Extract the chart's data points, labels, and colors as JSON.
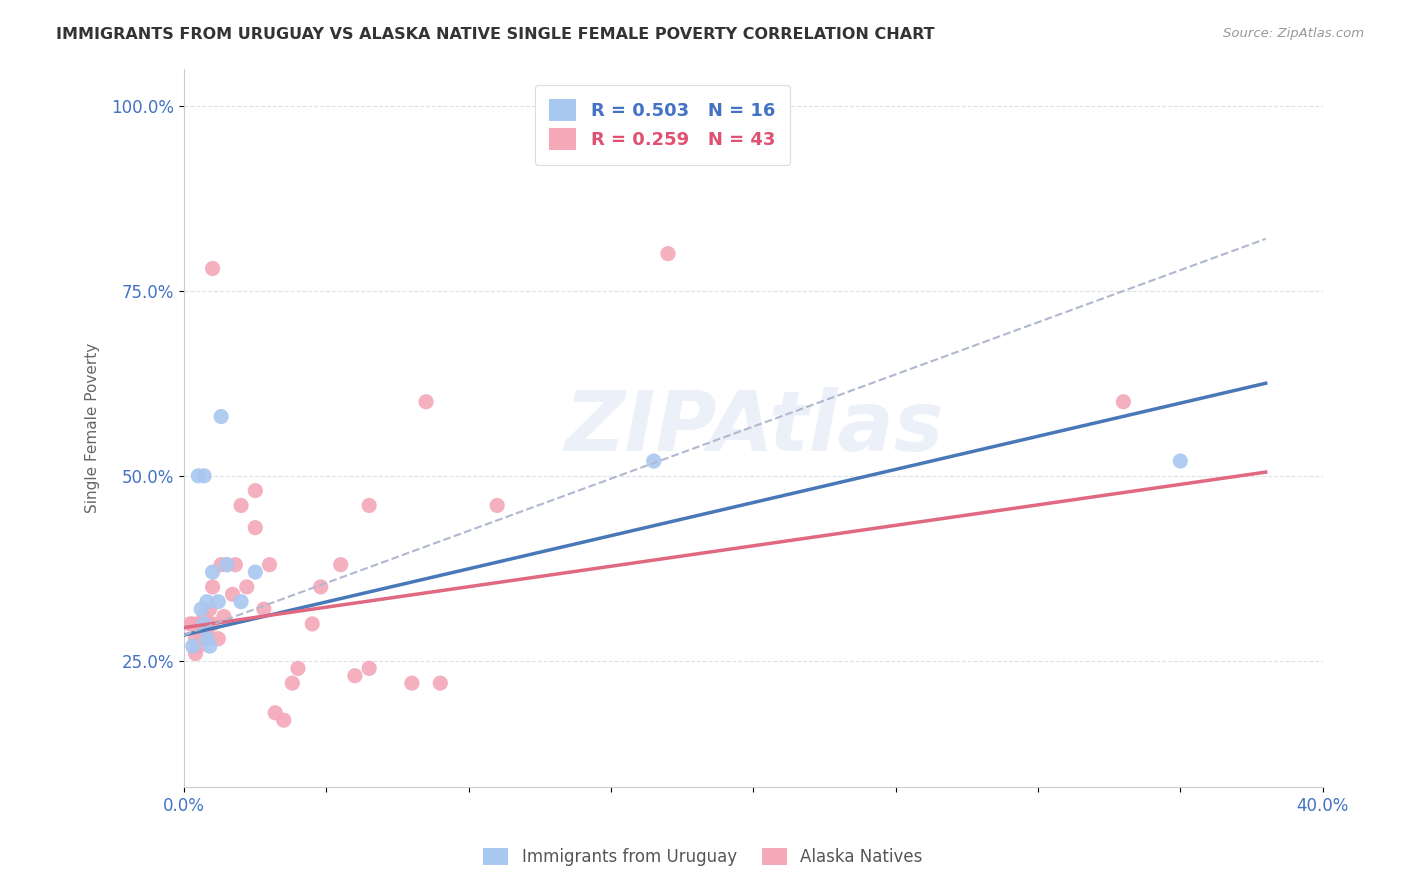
{
  "title": "IMMIGRANTS FROM URUGUAY VS ALASKA NATIVE SINGLE FEMALE POVERTY CORRELATION CHART",
  "source": "Source: ZipAtlas.com",
  "xlabel_label": "Immigrants from Uruguay",
  "ylabel_label": "Single Female Poverty",
  "xlim": [
    0.0,
    0.4
  ],
  "ylim": [
    0.08,
    1.05
  ],
  "xticks": [
    0.0,
    0.05,
    0.1,
    0.15,
    0.2,
    0.25,
    0.3,
    0.35,
    0.4
  ],
  "xtick_labels": [
    "0.0%",
    "",
    "",
    "",
    "",
    "",
    "",
    "",
    "40.0%"
  ],
  "ytick_positions": [
    0.25,
    0.5,
    0.75,
    1.0
  ],
  "ytick_labels": [
    "25.0%",
    "50.0%",
    "75.0%",
    "100.0%"
  ],
  "blue_R": "0.503",
  "blue_N": "16",
  "pink_R": "0.259",
  "pink_N": "43",
  "blue_color": "#a8c8f0",
  "pink_color": "#f4a8b8",
  "blue_line_color": "#4878b8",
  "pink_line_color": "#e06880",
  "dashed_line_color": "#b0b8d0",
  "watermark_text": "ZIPAtlas",
  "blue_scatter_x": [
    0.003,
    0.005,
    0.006,
    0.007,
    0.007,
    0.008,
    0.008,
    0.009,
    0.01,
    0.012,
    0.013,
    0.015,
    0.02,
    0.025,
    0.165,
    0.35
  ],
  "blue_scatter_y": [
    0.27,
    0.5,
    0.32,
    0.3,
    0.5,
    0.33,
    0.28,
    0.27,
    0.37,
    0.33,
    0.58,
    0.38,
    0.33,
    0.37,
    0.52,
    0.52
  ],
  "pink_scatter_x": [
    0.002,
    0.003,
    0.004,
    0.004,
    0.005,
    0.005,
    0.006,
    0.007,
    0.007,
    0.008,
    0.008,
    0.009,
    0.01,
    0.01,
    0.01,
    0.012,
    0.013,
    0.014,
    0.015,
    0.017,
    0.018,
    0.02,
    0.022,
    0.025,
    0.025,
    0.028,
    0.03,
    0.032,
    0.035,
    0.038,
    0.04,
    0.045,
    0.048,
    0.055,
    0.06,
    0.065,
    0.065,
    0.08,
    0.085,
    0.09,
    0.11,
    0.17,
    0.33
  ],
  "pink_scatter_y": [
    0.3,
    0.3,
    0.28,
    0.26,
    0.27,
    0.3,
    0.28,
    0.31,
    0.28,
    0.3,
    0.29,
    0.32,
    0.3,
    0.35,
    0.78,
    0.28,
    0.38,
    0.31,
    0.38,
    0.34,
    0.38,
    0.46,
    0.35,
    0.43,
    0.48,
    0.32,
    0.38,
    0.18,
    0.17,
    0.22,
    0.24,
    0.3,
    0.35,
    0.38,
    0.23,
    0.46,
    0.24,
    0.22,
    0.6,
    0.22,
    0.46,
    0.8,
    0.6
  ],
  "blue_trend_x": [
    0.0,
    0.38
  ],
  "blue_trend_y": [
    0.285,
    0.625
  ],
  "pink_trend_x": [
    0.0,
    0.38
  ],
  "pink_trend_y": [
    0.295,
    0.505
  ],
  "dashed_trend_x": [
    0.0,
    0.38
  ],
  "dashed_trend_y": [
    0.285,
    0.82
  ],
  "background_color": "#ffffff",
  "grid_color": "#e0e0e8"
}
